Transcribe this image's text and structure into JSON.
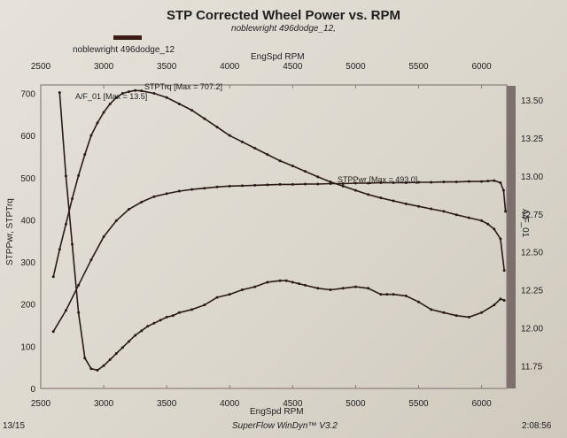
{
  "chart_data": {
    "type": "line",
    "title": "STP Corrected Wheel Power vs. RPM",
    "subtitle": "noblewright 496dodge_12,",
    "legend": [
      "noblewright 496dodge_12"
    ],
    "xlabel": "EngSpd  RPM",
    "xlim": [
      2500,
      6200
    ],
    "x_ticks_top": [
      2500,
      3000,
      3500,
      4000,
      4500,
      5000,
      5500,
      6000
    ],
    "x_ticks_bottom": [
      2500,
      3000,
      3500,
      4000,
      4500,
      5000,
      5500,
      6000
    ],
    "left_axis": {
      "label": "STPPwr, STPTrq",
      "ylim": [
        0,
        720
      ],
      "ticks": [
        0,
        100,
        200,
        300,
        400,
        500,
        600,
        700
      ]
    },
    "right_axis": {
      "label": "A/F_01",
      "ylim": [
        11.6,
        13.6
      ],
      "ticks": [
        11.75,
        12.0,
        12.25,
        12.5,
        12.75,
        13.0,
        13.25,
        13.5
      ]
    },
    "annotations": [
      {
        "series": "STPTrq",
        "text": "STPTrq [Max = 707.2]"
      },
      {
        "series": "STPPwr",
        "text": "STPPwr [Max = 493.0]"
      },
      {
        "series": "A/F_01",
        "text": "A/F_01 [Max = 13.5]"
      }
    ],
    "series": [
      {
        "name": "STPTrq",
        "axis": "left",
        "x": [
          2600,
          2650,
          2700,
          2750,
          2800,
          2850,
          2900,
          2950,
          3000,
          3050,
          3100,
          3150,
          3200,
          3250,
          3300,
          3400,
          3500,
          3600,
          3700,
          3800,
          3900,
          4000,
          4100,
          4200,
          4300,
          4400,
          4500,
          4600,
          4700,
          4800,
          4900,
          5000,
          5100,
          5200,
          5300,
          5400,
          5500,
          5600,
          5700,
          5800,
          5900,
          6000,
          6050,
          6100,
          6150,
          6180
        ],
        "y": [
          265,
          330,
          390,
          450,
          505,
          555,
          600,
          630,
          655,
          675,
          690,
          700,
          704,
          707,
          706,
          700,
          690,
          675,
          660,
          640,
          620,
          600,
          585,
          570,
          555,
          540,
          528,
          515,
          502,
          490,
          480,
          470,
          460,
          452,
          445,
          438,
          432,
          426,
          420,
          412,
          405,
          398,
          390,
          378,
          355,
          280
        ]
      },
      {
        "name": "STPPwr",
        "axis": "left",
        "x": [
          2600,
          2700,
          2800,
          2900,
          3000,
          3100,
          3200,
          3300,
          3400,
          3500,
          3600,
          3700,
          3800,
          3900,
          4000,
          4100,
          4200,
          4300,
          4400,
          4500,
          4600,
          4700,
          4800,
          4900,
          5000,
          5100,
          5200,
          5300,
          5400,
          5500,
          5600,
          5700,
          5800,
          5900,
          6000,
          6050,
          6100,
          6150,
          6175,
          6190
        ],
        "y": [
          135,
          185,
          245,
          305,
          360,
          398,
          425,
          442,
          455,
          462,
          468,
          472,
          475,
          478,
          480,
          481,
          482,
          483,
          484,
          484,
          485,
          485,
          486,
          486,
          487,
          487,
          488,
          488,
          488,
          489,
          489,
          490,
          490,
          491,
          491,
          492,
          493,
          488,
          470,
          420
        ]
      },
      {
        "name": "A/F_01",
        "axis": "right",
        "x": [
          2650,
          2700,
          2750,
          2800,
          2850,
          2900,
          2950,
          3000,
          3050,
          3100,
          3150,
          3200,
          3250,
          3300,
          3350,
          3400,
          3450,
          3500,
          3550,
          3600,
          3700,
          3800,
          3900,
          4000,
          4100,
          4200,
          4300,
          4400,
          4450,
          4500,
          4550,
          4600,
          4700,
          4800,
          4900,
          5000,
          5100,
          5200,
          5250,
          5300,
          5400,
          5500,
          5600,
          5700,
          5800,
          5900,
          6000,
          6100,
          6150,
          6180
        ],
        "y": [
          13.55,
          13.0,
          12.55,
          12.1,
          11.8,
          11.73,
          11.72,
          11.75,
          11.79,
          11.83,
          11.87,
          11.91,
          11.95,
          11.98,
          12.01,
          12.03,
          12.05,
          12.07,
          12.08,
          12.1,
          12.12,
          12.15,
          12.2,
          12.22,
          12.25,
          12.27,
          12.3,
          12.31,
          12.31,
          12.3,
          12.29,
          12.28,
          12.26,
          12.25,
          12.26,
          12.27,
          12.26,
          12.22,
          12.22,
          12.22,
          12.21,
          12.17,
          12.12,
          12.1,
          12.08,
          12.07,
          12.1,
          12.15,
          12.19,
          12.18
        ]
      }
    ]
  },
  "footer": {
    "date": "13/15",
    "software": "SuperFlow WinDyn™ V3.2",
    "time": "2:08:56"
  }
}
